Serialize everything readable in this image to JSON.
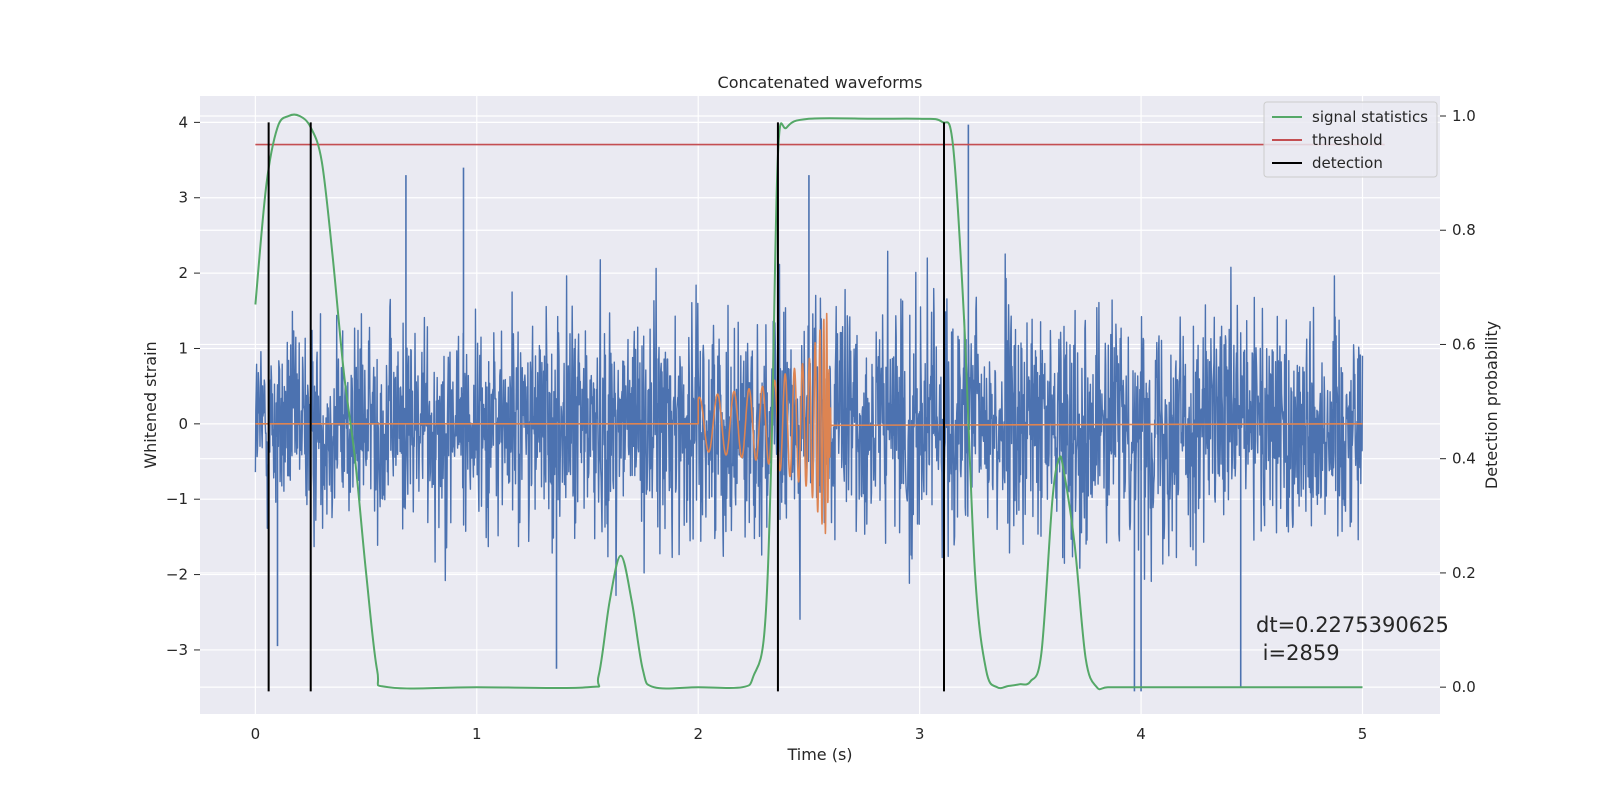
{
  "chart_data": {
    "type": "line",
    "title": "Concatenated waveforms",
    "xlabel": "Time (s)",
    "ylabel": "Whitened strain",
    "ylabel_right": "Detection probability",
    "xlim": [
      -0.25,
      5.35
    ],
    "ylim": [
      -3.85,
      4.35
    ],
    "ylim_right": [
      -0.047,
      1.035
    ],
    "x_ticks": [
      0,
      1,
      2,
      3,
      4,
      5
    ],
    "x_tick_labels": [
      "0",
      "1",
      "2",
      "3",
      "4",
      "5"
    ],
    "y_ticks": [
      4,
      3,
      2,
      1,
      0,
      -1,
      -2,
      -3
    ],
    "y_tick_labels": [
      "4",
      "3",
      "2",
      "1",
      "0",
      "−1",
      "−2",
      "−3"
    ],
    "y_right_ticks": [
      1.0,
      0.8,
      0.6,
      0.4,
      0.2,
      0.0
    ],
    "y_right_tick_labels": [
      "1.0",
      "0.8",
      "0.6",
      "0.4",
      "0.2",
      "0.0"
    ],
    "grid": true,
    "legend_position": "top-right",
    "legend": [
      {
        "label": "signal statistics",
        "color": "#55a868"
      },
      {
        "label": "threshold",
        "color": "#c44e52"
      },
      {
        "label": "detection",
        "color": "#000000"
      }
    ],
    "series": [
      {
        "name": "whitened strain (noise)",
        "axis": "left",
        "color": "#4c72b0",
        "description": "dense random noise from t=0 to t=5",
        "x_range": [
          0,
          5
        ],
        "amplitude_envelope": [
          [
            0.0,
            2.0
          ],
          [
            0.5,
            2.2
          ],
          [
            1.0,
            2.4
          ],
          [
            1.5,
            2.5
          ],
          [
            2.0,
            2.5
          ],
          [
            2.5,
            2.6
          ],
          [
            3.0,
            2.7
          ],
          [
            3.5,
            2.5
          ],
          [
            4.0,
            2.4
          ],
          [
            4.5,
            2.6
          ],
          [
            5.0,
            2.5
          ]
        ],
        "notable_spikes": [
          [
            0.1,
            -2.95
          ],
          [
            0.68,
            3.3
          ],
          [
            0.94,
            3.4
          ],
          [
            1.36,
            -3.25
          ],
          [
            2.5,
            3.3
          ],
          [
            3.22,
            3.97
          ],
          [
            3.97,
            -3.55
          ],
          [
            4.0,
            -3.55
          ],
          [
            4.45,
            -3.5
          ]
        ]
      },
      {
        "name": "injected chirp",
        "axis": "left",
        "color": "#dd8452",
        "description": "zero except a chirp from t=2.0 to t=2.6",
        "x": [
          0,
          2.0,
          2.3,
          2.5,
          2.58,
          2.6,
          5.0
        ],
        "amplitude": [
          0,
          0.35,
          0.5,
          0.85,
          1.5,
          0.02,
          0
        ]
      },
      {
        "name": "signal statistics",
        "axis": "right",
        "color": "#55a868",
        "x": [
          0,
          0.05,
          0.1,
          0.15,
          0.2,
          0.25,
          0.3,
          0.35,
          0.4,
          0.45,
          0.5,
          0.55,
          0.6,
          1.0,
          1.5,
          1.55,
          1.6,
          1.65,
          1.7,
          1.75,
          1.8,
          2.0,
          2.2,
          2.25,
          2.3,
          2.33,
          2.36,
          2.4,
          2.5,
          2.8,
          3.0,
          3.1,
          3.15,
          3.2,
          3.25,
          3.3,
          3.35,
          3.4,
          3.45,
          3.5,
          3.55,
          3.6,
          3.63,
          3.65,
          3.7,
          3.75,
          3.8,
          3.85,
          4.0,
          5.0
        ],
        "y": [
          0.67,
          0.88,
          0.98,
          1.0,
          1.0,
          0.98,
          0.92,
          0.75,
          0.55,
          0.4,
          0.2,
          0.03,
          0.0,
          0.0,
          0.0,
          0.02,
          0.15,
          0.23,
          0.15,
          0.03,
          0.0,
          0.0,
          0.0,
          0.02,
          0.1,
          0.4,
          0.93,
          0.98,
          0.995,
          0.995,
          0.995,
          0.99,
          0.95,
          0.65,
          0.2,
          0.03,
          0.0,
          0.002,
          0.005,
          0.01,
          0.06,
          0.33,
          0.4,
          0.38,
          0.25,
          0.05,
          0.0,
          0.0,
          0.0,
          0.0
        ]
      },
      {
        "name": "threshold",
        "axis": "right",
        "color": "#c44e52",
        "x": [
          0,
          5.1
        ],
        "y": [
          0.95,
          0.95
        ]
      }
    ],
    "detections": [
      0.06,
      0.25,
      2.36,
      3.11
    ],
    "detection_y_range": [
      -3.55,
      4.0
    ],
    "annotation": {
      "line1": "dt=0.2275390625",
      "line2": " i=2859",
      "x": 4.5,
      "y": -2.9
    }
  }
}
